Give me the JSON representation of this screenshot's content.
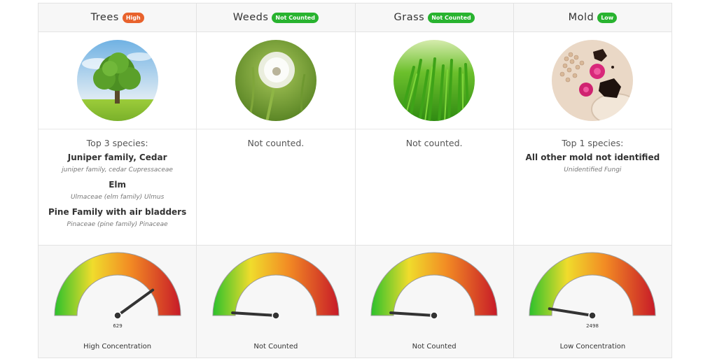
{
  "colors": {
    "high": "#e8622c",
    "low": "#28b32f",
    "not_counted": "#28b32f"
  },
  "columns": [
    {
      "title": "Trees",
      "badge": "High",
      "badge_color": "#e8622c",
      "image": "tree-photo",
      "species_header": "Top 3 species:",
      "species": [
        {
          "name": "Juniper family, Cedar",
          "scientific": "juniper family, cedar Cupressaceae"
        },
        {
          "name": "Elm",
          "scientific": "Ulmaceae (elm family) Ulmus"
        },
        {
          "name": "Pine Family with air bladders",
          "scientific": "Pinaceae (pine family) Pinaceae"
        }
      ],
      "gauge_value": "629",
      "gauge_level": 0.8,
      "gauge_label": "High Concentration"
    },
    {
      "title": "Weeds",
      "badge": "Not Counted",
      "badge_color": "#28b32f",
      "image": "dandelion-photo",
      "species_header": "Not counted.",
      "species": [],
      "gauge_value": "",
      "gauge_level": 0.02,
      "gauge_label": "Not Counted"
    },
    {
      "title": "Grass",
      "badge": "Not Counted",
      "badge_color": "#28b32f",
      "image": "grass-photo",
      "species_header": "Not counted.",
      "species": [],
      "gauge_value": "",
      "gauge_level": 0.02,
      "gauge_label": "Not Counted"
    },
    {
      "title": "Mold",
      "badge": "Low",
      "badge_color": "#28b32f",
      "image": "mold-spores-photo",
      "species_header": "Top 1 species:",
      "species": [
        {
          "name": "All other mold not identified",
          "scientific": "Unidentified Fungi"
        }
      ],
      "gauge_value": "2498",
      "gauge_level": 0.05,
      "gauge_label": "Low Concentration"
    }
  ]
}
